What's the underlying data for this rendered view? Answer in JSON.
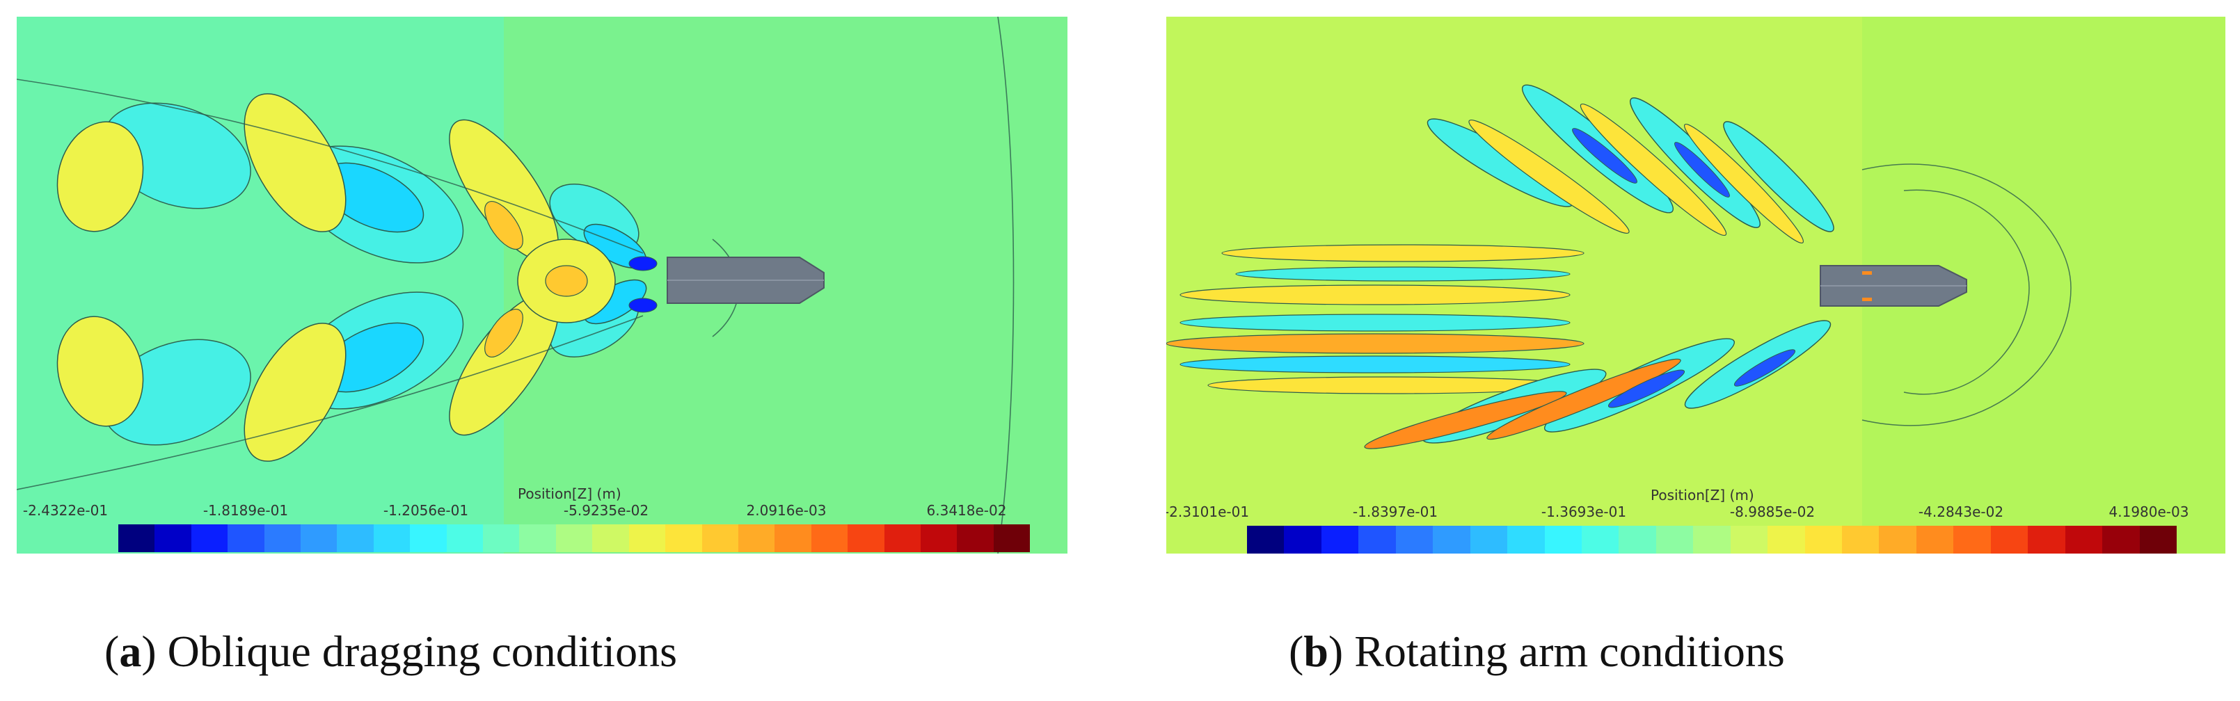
{
  "panels": [
    {
      "id": "a",
      "background": "#7af28e",
      "scale_title": "Position[Z] (m)",
      "ticks": [
        "-2.4322e-01",
        "-1.8189e-01",
        "-1.2056e-01",
        "-5.9235e-02",
        "2.0916e-03",
        "6.3418e-02"
      ],
      "caption_letter": "a",
      "caption_text": "Oblique dragging conditions"
    },
    {
      "id": "b",
      "background": "#b3f55a",
      "scale_title": "Position[Z] (m)",
      "ticks": [
        "-2.3101e-01",
        "-1.8397e-01",
        "-1.3693e-01",
        "-8.9885e-02",
        "-4.2843e-02",
        "4.1980e-03"
      ],
      "caption_letter": "b",
      "caption_text": "Rotating arm conditions"
    }
  ],
  "colormap": [
    "#00007f",
    "#0000c8",
    "#0a1fff",
    "#1f55ff",
    "#2b7bff",
    "#2f9bff",
    "#2ebcff",
    "#2fdcff",
    "#38f5ff",
    "#4dfce6",
    "#6dfcc2",
    "#8dfca2",
    "#aefc83",
    "#cff964",
    "#eef34a",
    "#fde43a",
    "#ffc930",
    "#ffab27",
    "#ff8c1e",
    "#ff6a17",
    "#f74512",
    "#e01f0e",
    "#c0080b",
    "#98000a",
    "#6f0008"
  ]
}
